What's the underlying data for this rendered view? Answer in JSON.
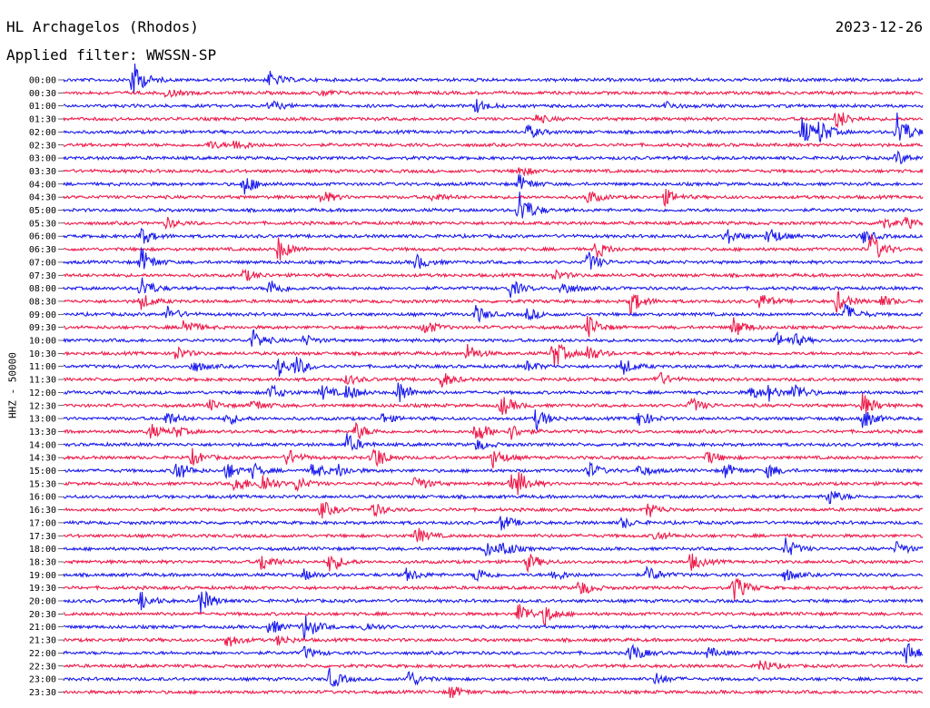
{
  "header": {
    "station": "HL Archagelos (Rhodos)",
    "date": "2023-12-26",
    "filter": "Applied filter: WWSSN-SP",
    "ylabel": "HHZ - 50000"
  },
  "colors": {
    "blue": "#1a1aee",
    "red": "#ee1a4a"
  },
  "chart_data": {
    "type": "line",
    "title": "HL Archagelos (Rhodos)",
    "ylabel": "HHZ - 50000",
    "trace_colors_alternating": [
      "blue",
      "red"
    ],
    "rows": [
      {
        "label": "00:00",
        "color": "blue",
        "events": [
          [
            8,
            22
          ],
          [
            24,
            9
          ]
        ]
      },
      {
        "label": "00:30",
        "color": "red",
        "events": [
          [
            12,
            5
          ],
          [
            30,
            4
          ]
        ]
      },
      {
        "label": "01:00",
        "color": "blue",
        "events": [
          [
            24,
            6
          ],
          [
            48,
            8
          ],
          [
            70,
            5
          ]
        ]
      },
      {
        "label": "01:30",
        "color": "red",
        "events": [
          [
            55,
            5
          ],
          [
            90,
            12
          ]
        ]
      },
      {
        "label": "02:00",
        "color": "blue",
        "events": [
          [
            54,
            8
          ],
          [
            86,
            16
          ],
          [
            88,
            12
          ],
          [
            97,
            24
          ]
        ]
      },
      {
        "label": "02:30",
        "color": "red",
        "events": [
          [
            20,
            7
          ],
          [
            17,
            5
          ]
        ]
      },
      {
        "label": "03:00",
        "color": "blue",
        "events": [
          [
            97,
            8
          ]
        ]
      },
      {
        "label": "03:30",
        "color": "red",
        "events": [
          [
            53,
            6
          ]
        ]
      },
      {
        "label": "04:00",
        "color": "blue",
        "events": [
          [
            21,
            12
          ],
          [
            53,
            10
          ]
        ]
      },
      {
        "label": "04:30",
        "color": "red",
        "events": [
          [
            30,
            8
          ],
          [
            43,
            5
          ],
          [
            61,
            8
          ],
          [
            70,
            9
          ]
        ]
      },
      {
        "label": "05:00",
        "color": "blue",
        "events": [
          [
            53,
            24
          ]
        ]
      },
      {
        "label": "05:30",
        "color": "red",
        "events": [
          [
            12,
            6
          ],
          [
            95,
            8
          ],
          [
            98,
            6
          ]
        ]
      },
      {
        "label": "06:00",
        "color": "blue",
        "events": [
          [
            9,
            10
          ],
          [
            77,
            10
          ],
          [
            82,
            12
          ],
          [
            93,
            8
          ]
        ]
      },
      {
        "label": "06:30",
        "color": "red",
        "events": [
          [
            25,
            14
          ],
          [
            62,
            10
          ],
          [
            94,
            18
          ]
        ]
      },
      {
        "label": "07:00",
        "color": "blue",
        "events": [
          [
            9,
            16
          ],
          [
            41,
            9
          ],
          [
            61,
            12
          ]
        ]
      },
      {
        "label": "07:30",
        "color": "red",
        "events": [
          [
            21,
            7
          ],
          [
            57,
            6
          ]
        ]
      },
      {
        "label": "08:00",
        "color": "blue",
        "events": [
          [
            9,
            14
          ],
          [
            24,
            11
          ],
          [
            52,
            10
          ],
          [
            58,
            9
          ]
        ]
      },
      {
        "label": "08:30",
        "color": "red",
        "events": [
          [
            9,
            9
          ],
          [
            66,
            14
          ],
          [
            81,
            10
          ],
          [
            90,
            12
          ],
          [
            95,
            8
          ]
        ]
      },
      {
        "label": "09:00",
        "color": "blue",
        "events": [
          [
            12,
            9
          ],
          [
            48,
            10
          ],
          [
            54,
            7
          ],
          [
            91,
            12
          ]
        ]
      },
      {
        "label": "09:30",
        "color": "red",
        "events": [
          [
            14,
            11
          ],
          [
            42,
            9
          ],
          [
            61,
            14
          ],
          [
            78,
            12
          ]
        ]
      },
      {
        "label": "10:00",
        "color": "blue",
        "events": [
          [
            22,
            12
          ],
          [
            28,
            6
          ],
          [
            83,
            8
          ],
          [
            85,
            6
          ]
        ]
      },
      {
        "label": "10:30",
        "color": "red",
        "events": [
          [
            13,
            8
          ],
          [
            47,
            10
          ],
          [
            57,
            18
          ],
          [
            61,
            10
          ]
        ]
      },
      {
        "label": "11:00",
        "color": "blue",
        "events": [
          [
            15,
            7
          ],
          [
            25,
            11
          ],
          [
            27,
            10
          ],
          [
            54,
            6
          ],
          [
            65,
            10
          ]
        ]
      },
      {
        "label": "11:30",
        "color": "red",
        "events": [
          [
            33,
            6
          ],
          [
            44,
            9
          ],
          [
            69,
            10
          ]
        ]
      },
      {
        "label": "12:00",
        "color": "blue",
        "events": [
          [
            24,
            10
          ],
          [
            30,
            9
          ],
          [
            33,
            9
          ],
          [
            39,
            14
          ],
          [
            80,
            8
          ],
          [
            82,
            8
          ],
          [
            85,
            12
          ]
        ]
      },
      {
        "label": "12:30",
        "color": "red",
        "events": [
          [
            17,
            6
          ],
          [
            22,
            7
          ],
          [
            51,
            12
          ],
          [
            73,
            9
          ],
          [
            93,
            14
          ]
        ]
      },
      {
        "label": "13:00",
        "color": "blue",
        "events": [
          [
            12,
            8
          ],
          [
            19,
            7
          ],
          [
            37,
            6
          ],
          [
            55,
            12
          ],
          [
            67,
            10
          ],
          [
            93,
            12
          ]
        ]
      },
      {
        "label": "13:30",
        "color": "red",
        "events": [
          [
            10,
            9
          ],
          [
            13,
            6
          ],
          [
            34,
            10
          ],
          [
            48,
            14
          ],
          [
            52,
            9
          ]
        ]
      },
      {
        "label": "14:00",
        "color": "blue",
        "events": [
          [
            33,
            12
          ],
          [
            48,
            7
          ]
        ]
      },
      {
        "label": "14:30",
        "color": "red",
        "events": [
          [
            15,
            9
          ],
          [
            26,
            10
          ],
          [
            36,
            16
          ],
          [
            50,
            11
          ],
          [
            75,
            8
          ]
        ]
      },
      {
        "label": "15:00",
        "color": "blue",
        "events": [
          [
            13,
            14
          ],
          [
            19,
            10
          ],
          [
            22,
            8
          ],
          [
            29,
            10
          ],
          [
            32,
            7
          ],
          [
            61,
            10
          ],
          [
            67,
            7
          ],
          [
            77,
            8
          ],
          [
            82,
            8
          ]
        ]
      },
      {
        "label": "15:30",
        "color": "red",
        "events": [
          [
            20,
            11
          ],
          [
            23,
            14
          ],
          [
            27,
            9
          ],
          [
            41,
            10
          ],
          [
            52,
            11
          ],
          [
            53,
            9
          ]
        ]
      },
      {
        "label": "16:00",
        "color": "blue",
        "events": [
          [
            89,
            10
          ]
        ]
      },
      {
        "label": "16:30",
        "color": "red",
        "events": [
          [
            30,
            10
          ],
          [
            36,
            8
          ],
          [
            68,
            9
          ]
        ]
      },
      {
        "label": "17:00",
        "color": "blue",
        "events": [
          [
            51,
            9
          ],
          [
            65,
            6
          ]
        ]
      },
      {
        "label": "17:30",
        "color": "red",
        "events": [
          [
            41,
            10
          ],
          [
            69,
            6
          ]
        ]
      },
      {
        "label": "18:00",
        "color": "blue",
        "events": [
          [
            49,
            9
          ],
          [
            51,
            10
          ],
          [
            84,
            12
          ],
          [
            97,
            8
          ]
        ]
      },
      {
        "label": "18:30",
        "color": "red",
        "events": [
          [
            23,
            11
          ],
          [
            31,
            12
          ],
          [
            54,
            10
          ],
          [
            73,
            10
          ]
        ]
      },
      {
        "label": "19:00",
        "color": "blue",
        "events": [
          [
            28,
            6
          ],
          [
            40,
            8
          ],
          [
            48,
            9
          ],
          [
            57,
            7
          ],
          [
            68,
            10
          ],
          [
            84,
            7
          ]
        ]
      },
      {
        "label": "19:30",
        "color": "red",
        "events": [
          [
            60,
            10
          ],
          [
            78,
            16
          ]
        ]
      },
      {
        "label": "20:00",
        "color": "blue",
        "events": [
          [
            9,
            10
          ],
          [
            16,
            14
          ]
        ]
      },
      {
        "label": "20:30",
        "color": "red",
        "events": [
          [
            53,
            14
          ],
          [
            56,
            11
          ]
        ]
      },
      {
        "label": "21:00",
        "color": "blue",
        "events": [
          [
            24,
            9
          ],
          [
            28,
            16
          ],
          [
            35,
            6
          ]
        ]
      },
      {
        "label": "21:30",
        "color": "red",
        "events": [
          [
            19,
            9
          ],
          [
            25,
            6
          ]
        ]
      },
      {
        "label": "22:00",
        "color": "blue",
        "events": [
          [
            28,
            7
          ],
          [
            66,
            12
          ],
          [
            75,
            6
          ],
          [
            98,
            14
          ]
        ]
      },
      {
        "label": "22:30",
        "color": "red",
        "events": [
          [
            81,
            9
          ]
        ]
      },
      {
        "label": "23:00",
        "color": "blue",
        "events": [
          [
            31,
            12
          ],
          [
            40,
            12
          ],
          [
            69,
            7
          ]
        ]
      },
      {
        "label": "23:30",
        "color": "red",
        "events": [
          [
            45,
            8
          ]
        ]
      }
    ]
  }
}
